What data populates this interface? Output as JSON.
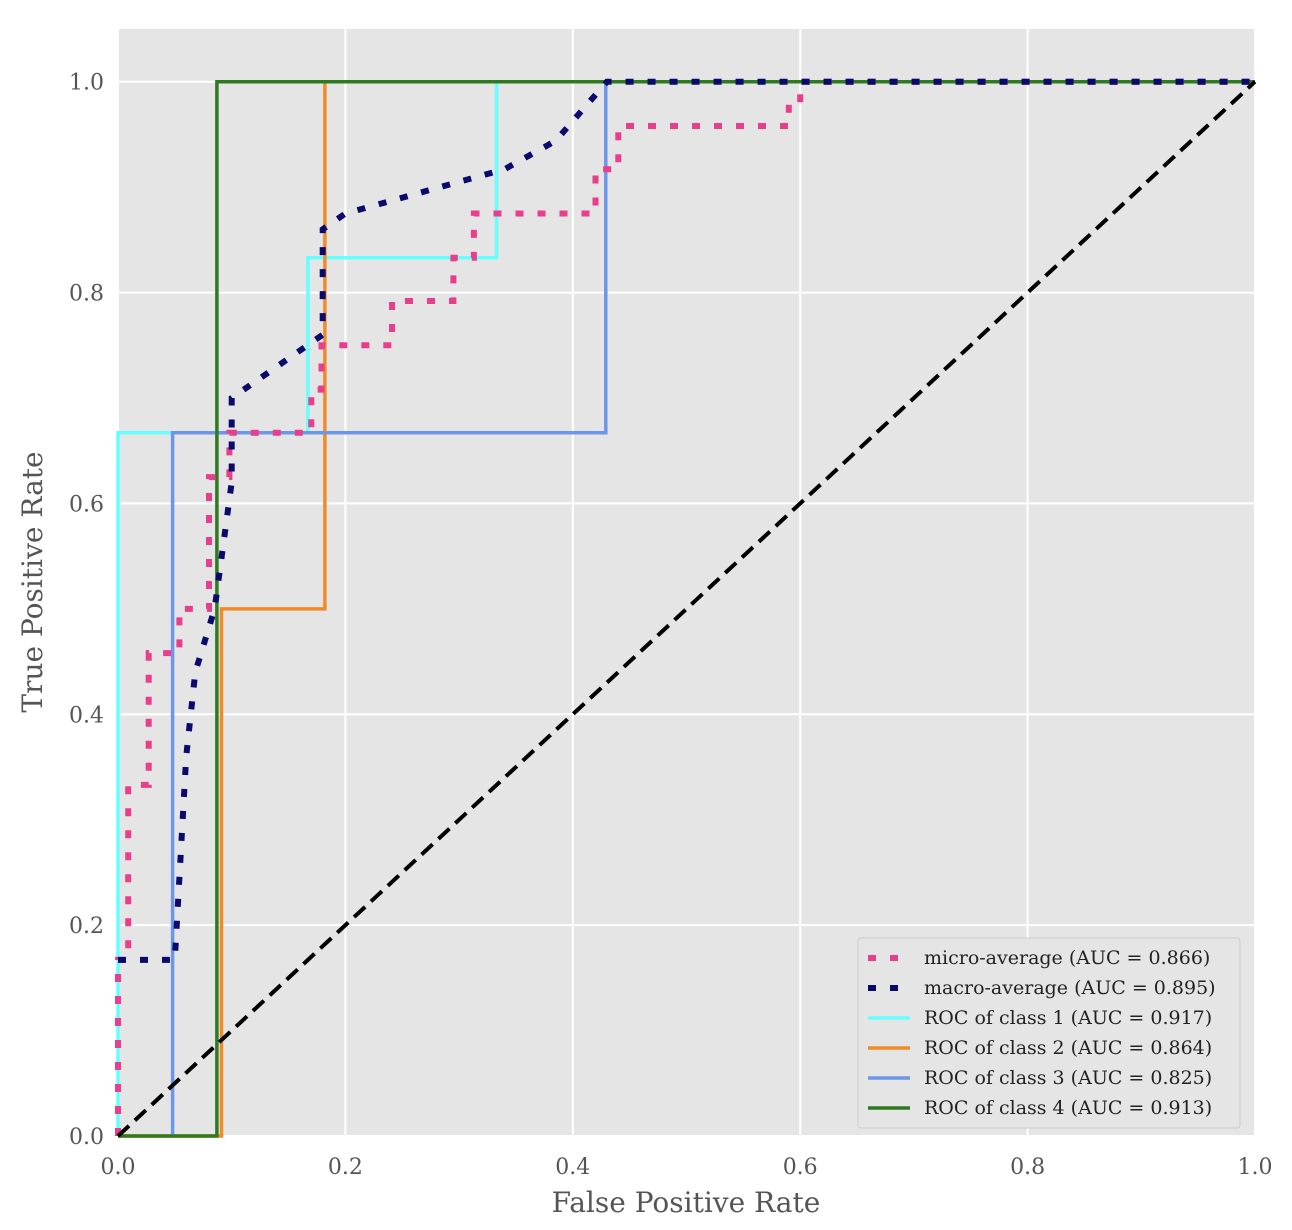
{
  "chart_data": {
    "type": "line",
    "title": "",
    "xlabel": "False Positive Rate",
    "ylabel": "True Positive Rate",
    "xlim": [
      0.0,
      1.0
    ],
    "ylim": [
      0.0,
      1.05
    ],
    "grid": true,
    "legend_position": "bottom-right",
    "xticks": [
      {
        "value": 0.0,
        "label": "0.0"
      },
      {
        "value": 0.2,
        "label": "0.2"
      },
      {
        "value": 0.4,
        "label": "0.4"
      },
      {
        "value": 0.6,
        "label": "0.6"
      },
      {
        "value": 0.8,
        "label": "0.8"
      },
      {
        "value": 1.0,
        "label": "1.0"
      }
    ],
    "yticks": [
      {
        "value": 0.0,
        "label": "0.0"
      },
      {
        "value": 0.2,
        "label": "0.2"
      },
      {
        "value": 0.4,
        "label": "0.4"
      },
      {
        "value": 0.6,
        "label": "0.6"
      },
      {
        "value": 0.8,
        "label": "0.8"
      },
      {
        "value": 1.0,
        "label": "1.0"
      }
    ],
    "series": [
      {
        "name": "micro-average (AUC = 0.866)",
        "color": "#e83e8c",
        "style": "dotted",
        "x": [
          0.0,
          0.0,
          0.009,
          0.009,
          0.027,
          0.027,
          0.054,
          0.054,
          0.08,
          0.08,
          0.098,
          0.098,
          0.116,
          0.116,
          0.17,
          0.17,
          0.179,
          0.179,
          0.214,
          0.214,
          0.241,
          0.241,
          0.268,
          0.268,
          0.295,
          0.295,
          0.313,
          0.313,
          0.33,
          0.33,
          0.42,
          0.42,
          0.44,
          0.44,
          0.59,
          0.59,
          0.6,
          0.6,
          1.0
        ],
        "y": [
          0.0,
          0.167,
          0.167,
          0.333,
          0.333,
          0.458,
          0.458,
          0.5,
          0.5,
          0.625,
          0.625,
          0.667,
          0.667,
          0.667,
          0.667,
          0.708,
          0.708,
          0.75,
          0.75,
          0.75,
          0.75,
          0.792,
          0.792,
          0.792,
          0.792,
          0.833,
          0.833,
          0.875,
          0.875,
          0.875,
          0.875,
          0.917,
          0.917,
          0.958,
          0.958,
          0.979,
          0.979,
          1.0,
          1.0
        ]
      },
      {
        "name": "macro-average (AUC = 0.895)",
        "color": "#0a0a6e",
        "style": "dotted",
        "x": [
          0.0,
          0.045,
          0.05,
          0.06,
          0.068,
          0.085,
          0.095,
          0.1,
          0.1,
          0.18,
          0.18,
          0.2,
          0.34,
          0.385,
          0.43,
          1.0
        ],
        "y": [
          0.167,
          0.167,
          0.167,
          0.36,
          0.44,
          0.5,
          0.58,
          0.62,
          0.7,
          0.76,
          0.86,
          0.875,
          0.917,
          0.944,
          1.0,
          1.0
        ]
      },
      {
        "name": "ROC of class 1 (AUC = 0.917)",
        "color": "#66ffff",
        "style": "solid",
        "x": [
          0.0,
          0.0,
          0.167,
          0.167,
          0.333,
          0.333,
          1.0
        ],
        "y": [
          0.0,
          0.667,
          0.667,
          0.833,
          0.833,
          1.0,
          1.0
        ]
      },
      {
        "name": "ROC of class 2 (AUC = 0.864)",
        "color": "#f08c28",
        "style": "solid",
        "x": [
          0.0,
          0.091,
          0.091,
          0.182,
          0.182,
          1.0
        ],
        "y": [
          0.0,
          0.0,
          0.5,
          0.5,
          1.0,
          1.0
        ]
      },
      {
        "name": "ROC of class 3 (AUC = 0.825)",
        "color": "#6d96e6",
        "style": "solid",
        "x": [
          0.048,
          0.048,
          0.429,
          0.429,
          1.0
        ],
        "y": [
          0.0,
          0.667,
          0.667,
          1.0,
          1.0
        ]
      },
      {
        "name": "ROC of class 4 (AUC = 0.913)",
        "color": "#2e7a1e",
        "style": "solid",
        "x": [
          0.0,
          0.087,
          0.087,
          1.0
        ],
        "y": [
          0.0,
          0.0,
          1.0,
          1.0
        ]
      },
      {
        "name": "chance",
        "color": "#000000",
        "style": "dashed",
        "in_legend": false,
        "x": [
          0.0,
          1.0
        ],
        "y": [
          0.0,
          1.0
        ]
      }
    ]
  }
}
